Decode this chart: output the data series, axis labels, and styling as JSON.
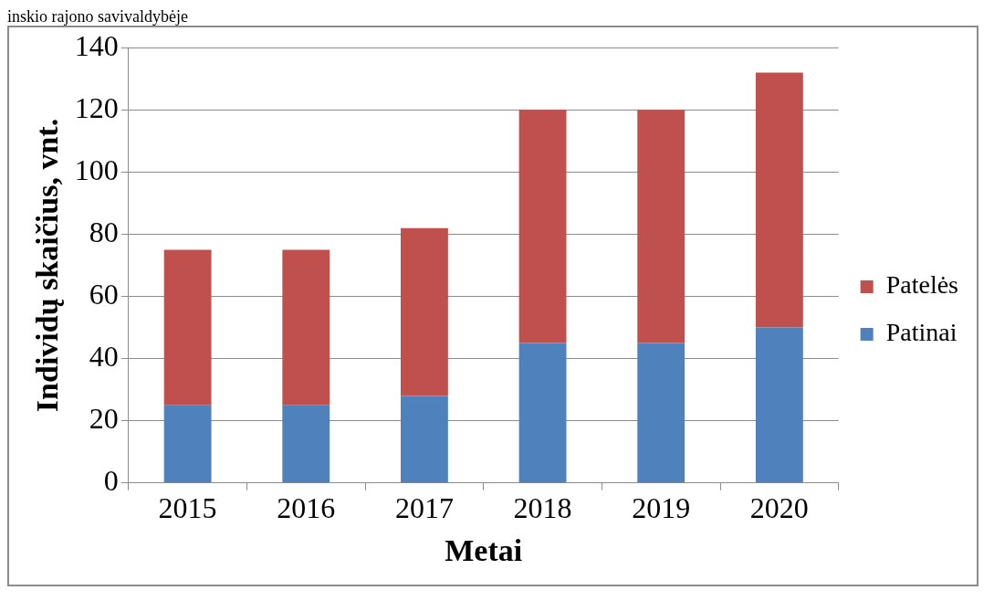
{
  "chart_data": {
    "type": "bar",
    "stacked": true,
    "xlabel": "Metai",
    "ylabel": "Individų skaičius, vnt.",
    "annotations": [
      "inskio rajono savivaldybėje"
    ],
    "categories": [
      "2015",
      "2016",
      "2017",
      "2018",
      "2019",
      "2020"
    ],
    "series": [
      {
        "name": "Patinai",
        "color": "#4f81bd",
        "values": [
          25,
          25,
          28,
          45,
          45,
          50
        ]
      },
      {
        "name": "Patelės",
        "color": "#c0504d",
        "values": [
          50,
          50,
          54,
          75,
          75,
          82
        ]
      }
    ],
    "ylim": [
      0,
      140
    ],
    "yticks": [
      0,
      20,
      40,
      60,
      80,
      100,
      120,
      140
    ],
    "grid": "y",
    "legend": "right"
  }
}
